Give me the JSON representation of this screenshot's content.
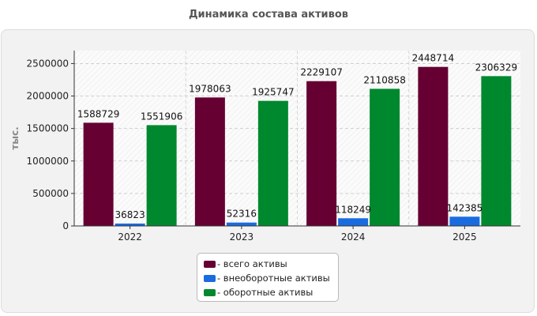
{
  "chart_data": {
    "type": "bar",
    "title": "Динамика состава активов",
    "ylabel": "тыс.",
    "xlabel": "",
    "categories": [
      "2022",
      "2023",
      "2024",
      "2025"
    ],
    "ylim": [
      0,
      2700000
    ],
    "yticks": [
      0,
      500000,
      1000000,
      1500000,
      2000000,
      2500000
    ],
    "ytick_labels": [
      "0",
      "500000",
      "1000000",
      "1500000",
      "2000000",
      "2500000"
    ],
    "grid": true,
    "legend_position": "bottom",
    "series": [
      {
        "name": "- всего активы",
        "color": "#660033",
        "values": [
          1588729,
          1978063,
          2229107,
          2448714
        ],
        "labels": [
          "1588729",
          "1978063",
          "2229107",
          "2448714"
        ]
      },
      {
        "name": "- внеоборотные активы",
        "color": "#1a6be0",
        "values": [
          36823,
          52316,
          118249,
          142385
        ],
        "labels": [
          "36823",
          "52316",
          "118249",
          "142385"
        ]
      },
      {
        "name": "- оборотные активы",
        "color": "#00882e",
        "values": [
          1551906,
          1925747,
          2110858,
          2306329
        ],
        "labels": [
          "1551906",
          "1925747",
          "2110858",
          "2306329"
        ]
      }
    ]
  }
}
